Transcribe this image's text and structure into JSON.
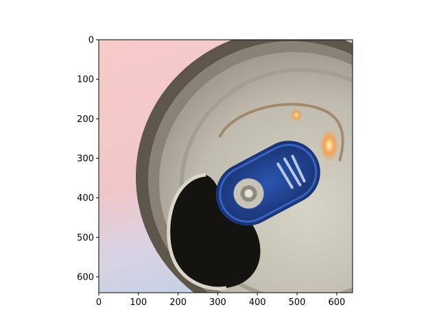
{
  "figure": {
    "image_subject": "Top of a beverage can with the tab lifted and a blue tab bearing a claw-mark logo",
    "x_ticks": [
      "0",
      "100",
      "200",
      "300",
      "400",
      "500",
      "600"
    ],
    "y_ticks": [
      "0",
      "100",
      "200",
      "300",
      "400",
      "500",
      "600"
    ],
    "x_range": [
      0,
      640
    ],
    "y_range": [
      640,
      0
    ],
    "colors": {
      "background_pink": "#f4c8c6",
      "background_blue": "#c9d3e6",
      "rim_dark": "#5b5247",
      "lid_silver": "#c4bfb2",
      "opening": "#15130f",
      "tab_blue": "#1f3f8a",
      "glare_orange": "#f2a352"
    }
  }
}
